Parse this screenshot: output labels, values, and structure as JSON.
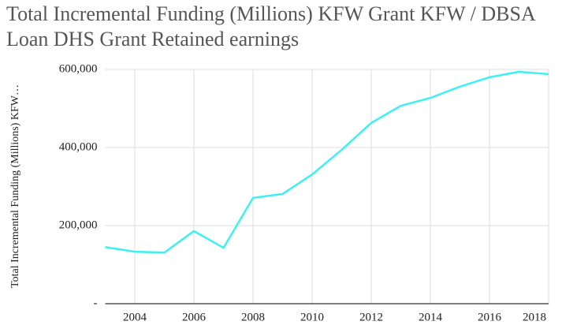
{
  "chart_data": {
    "type": "line",
    "title": "Total Incremental Funding (Millions) KFW Grant KFW / DBSA Loan DHS Grant Retained earnings",
    "y_label": "Total Incremental Funding (Millions) KFW…",
    "x": [
      2003,
      2004,
      2005,
      2006,
      2007,
      2008,
      2009,
      2010,
      2011,
      2012,
      2013,
      2014,
      2015,
      2016,
      2017,
      2018
    ],
    "series": [
      {
        "color": "#3ef0f0",
        "values": [
          145000,
          133000,
          131000,
          186000,
          143000,
          271000,
          281000,
          331000,
          394000,
          463000,
          507000,
          527000,
          556000,
          580000,
          594000,
          588000
        ]
      }
    ],
    "xlim": [
      2003,
      2018
    ],
    "xticks": [
      2004,
      2006,
      2008,
      2010,
      2012,
      2014,
      2016,
      2018
    ],
    "ylim": [
      0,
      600000
    ],
    "yticks": [
      {
        "value": 0,
        "label": "-"
      },
      {
        "value": 200000,
        "label": "200,000"
      },
      {
        "value": 400000,
        "label": "400,000"
      },
      {
        "value": 600000,
        "label": "600,000"
      }
    ],
    "grid": true
  }
}
